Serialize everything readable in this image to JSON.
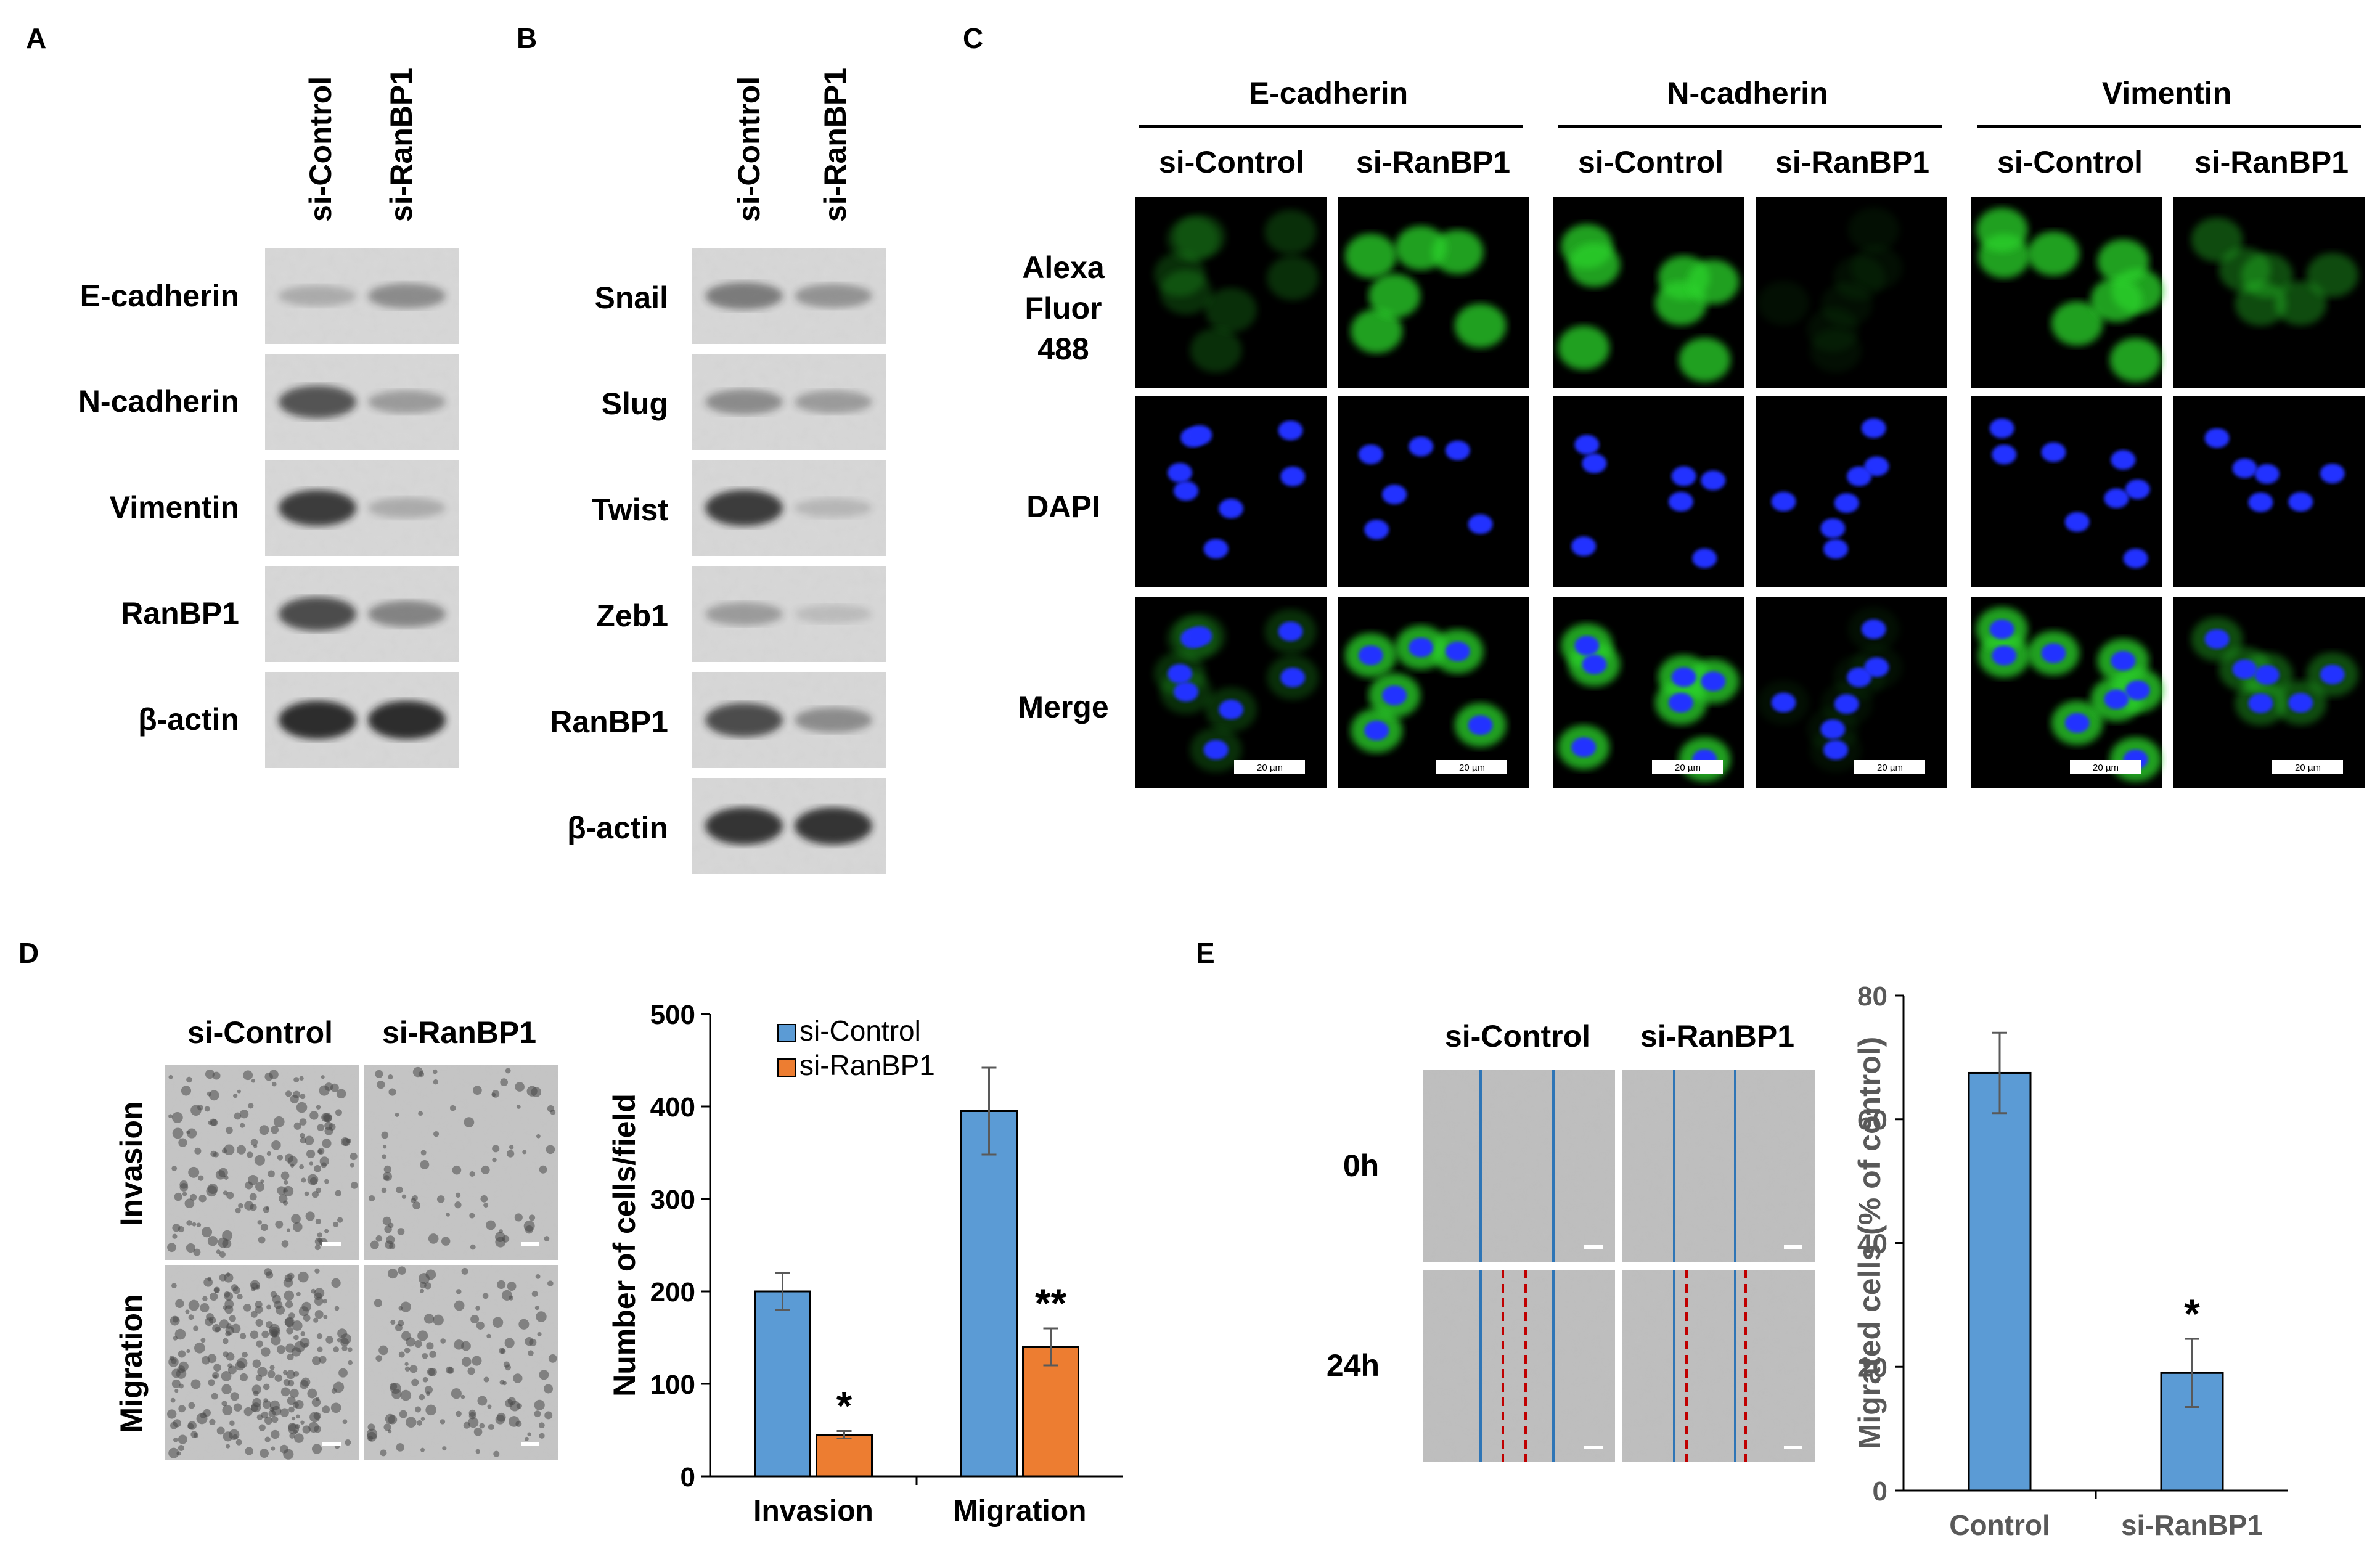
{
  "panel_letters": [
    "A",
    "B",
    "C",
    "D",
    "E"
  ],
  "panel_a": {
    "columns": [
      "si-Control",
      "si-RanBP1"
    ],
    "rows": [
      "E-cadherin",
      "N-cadherin",
      "Vimentin",
      "RanBP1",
      "β-actin"
    ],
    "bands": [
      {
        "row": "E-cadherin",
        "control": 0.15,
        "knockdown": 0.35
      },
      {
        "row": "N-cadherin",
        "control": 0.7,
        "knockdown": 0.25
      },
      {
        "row": "Vimentin",
        "control": 0.85,
        "knockdown": 0.15
      },
      {
        "row": "RanBP1",
        "control": 0.75,
        "knockdown": 0.4
      },
      {
        "row": "β-actin",
        "control": 0.95,
        "knockdown": 0.95
      }
    ]
  },
  "panel_b": {
    "columns": [
      "si-Control",
      "si-RanBP1"
    ],
    "rows": [
      "Snail",
      "Slug",
      "Twist",
      "Zeb1",
      "RanBP1",
      "β-actin"
    ],
    "bands": [
      {
        "row": "Snail",
        "control": 0.45,
        "knockdown": 0.3
      },
      {
        "row": "Slug",
        "control": 0.35,
        "knockdown": 0.25
      },
      {
        "row": "Twist",
        "control": 0.85,
        "knockdown": 0.08
      },
      {
        "row": "Zeb1",
        "control": 0.25,
        "knockdown": 0.05
      },
      {
        "row": "RanBP1",
        "control": 0.75,
        "knockdown": 0.35
      },
      {
        "row": "β-actin",
        "control": 0.9,
        "knockdown": 0.9
      }
    ]
  },
  "panel_c": {
    "groups": [
      "E-cadherin",
      "N-cadherin",
      "Vimentin"
    ],
    "columns": [
      "si-Control",
      "si-RanBP1",
      "si-Control",
      "si-RanBP1",
      "si-Control",
      "si-RanBP1"
    ],
    "rows": [
      "Alexa\nFluor\n488",
      "DAPI",
      "Merge"
    ],
    "green_intensity": [
      0.25,
      0.85,
      0.85,
      0.08,
      0.85,
      0.4
    ],
    "scale_bar_label": "20 µm"
  },
  "panel_d": {
    "image_columns": [
      "si-Control",
      "si-RanBP1"
    ],
    "image_rows": [
      "Invasion",
      "Migration"
    ],
    "cell_density": [
      [
        0.5,
        0.15
      ],
      [
        0.8,
        0.35
      ]
    ]
  },
  "panel_e": {
    "image_columns": [
      "si-Control",
      "si-RanBP1"
    ],
    "image_rows": [
      "0h",
      "24h"
    ]
  },
  "colors": {
    "control": "#5b9bd5",
    "knockdown": "#ed7d31",
    "line_blue": "#2e75b6",
    "line_red": "#c00000",
    "axis_grey": "#595959"
  },
  "chart_data": [
    {
      "type": "bar",
      "categories": [
        "Invasion",
        "Migration"
      ],
      "series": [
        {
          "name": "si-Control",
          "values": [
            200,
            395
          ],
          "errors": [
            20,
            47
          ]
        },
        {
          "name": "si-RanBP1",
          "values": [
            45,
            140
          ],
          "errors": [
            4,
            20
          ]
        }
      ],
      "significance": [
        {
          "category": "Invasion",
          "series": "si-RanBP1",
          "label": "*"
        },
        {
          "category": "Migration",
          "series": "si-RanBP1",
          "label": "**"
        }
      ],
      "ylabel": "Number of cells/field",
      "ylim": [
        0,
        500
      ],
      "yticks": [
        0,
        100,
        200,
        300,
        400,
        500
      ],
      "legend": "top-left"
    },
    {
      "type": "bar",
      "categories": [
        "Control",
        "si-RanBP1"
      ],
      "values": [
        67.5,
        19
      ],
      "errors": [
        6.5,
        5.5
      ],
      "significance": [
        {
          "category": "si-RanBP1",
          "label": "*"
        }
      ],
      "ylabel": "Migrated cells (% of control)",
      "ylim": [
        0,
        80
      ],
      "yticks": [
        0,
        20,
        40,
        60,
        80
      ]
    }
  ]
}
